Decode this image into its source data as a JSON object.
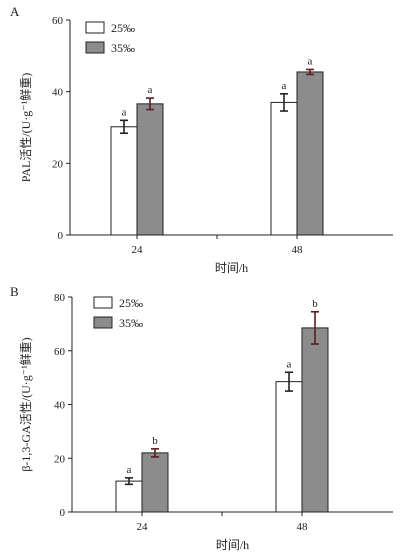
{
  "chart_data": [
    {
      "type": "bar",
      "panel_label": "A",
      "categories": [
        "24",
        "48"
      ],
      "series": [
        {
          "name": "25‰",
          "color": "#ffffff",
          "values": [
            30.2,
            37.0
          ],
          "errors": [
            1.8,
            2.4
          ],
          "letters": [
            "a",
            "a"
          ]
        },
        {
          "name": "35‰",
          "color": "#8c8c8c",
          "values": [
            36.6,
            45.5
          ],
          "errors": [
            1.6,
            0.7
          ],
          "letters": [
            "a",
            "a"
          ]
        }
      ],
      "xlabel": "时间/h",
      "ylabel": "PAL活性/(U·g⁻¹鲜重)",
      "ylim": [
        0,
        60
      ],
      "yticks": [
        0,
        20,
        40,
        60
      ],
      "legend": "top-left",
      "grid": false
    },
    {
      "type": "bar",
      "panel_label": "B",
      "categories": [
        "24",
        "48"
      ],
      "series": [
        {
          "name": "25‰",
          "color": "#ffffff",
          "values": [
            11.5,
            48.5
          ],
          "errors": [
            1.2,
            3.5
          ],
          "letters": [
            "a",
            "a"
          ]
        },
        {
          "name": "35‰",
          "color": "#8c8c8c",
          "values": [
            22.0,
            68.5
          ],
          "errors": [
            1.5,
            6.0
          ],
          "letters": [
            "b",
            "b"
          ]
        }
      ],
      "xlabel": "时间/h",
      "ylabel": "β-1,3-GA活性/(U·g⁻¹鲜重)",
      "ylim": [
        0,
        80
      ],
      "yticks": [
        0,
        20,
        40,
        60,
        80
      ],
      "legend": "top-left",
      "grid": false
    }
  ]
}
